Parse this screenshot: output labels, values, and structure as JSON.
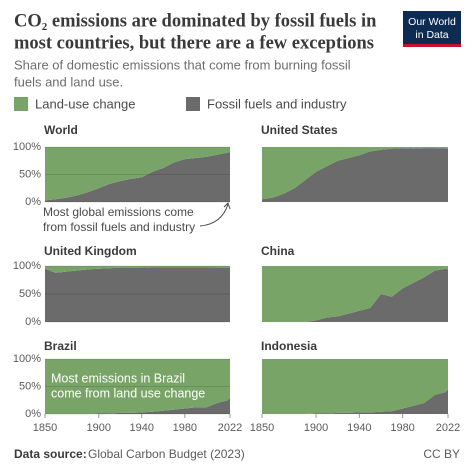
{
  "header": {
    "title": [
      "CO₂ emissions are dominated by fossil fuels in",
      "most countries, but there are a few exceptions"
    ],
    "subtitle": [
      "Share of domestic emissions that come from burning fossil",
      "fuels and land use."
    ],
    "logo": [
      "Our World",
      "in Data"
    ]
  },
  "footer": {
    "source_label": "Data source:",
    "source": "Global Carbon Budget (2023)",
    "license": "CC BY"
  },
  "chart_data": [
    {
      "type": "area",
      "title": "World",
      "stacked": true,
      "x": [
        1850,
        1860,
        1870,
        1880,
        1890,
        1900,
        1910,
        1920,
        1930,
        1940,
        1950,
        1960,
        1970,
        1980,
        1990,
        2000,
        2010,
        2020,
        2022
      ],
      "series": [
        {
          "name": "Fossil fuels and industry",
          "color": "#6b6b6b",
          "values": [
            3,
            5,
            8,
            12,
            18,
            25,
            33,
            38,
            42,
            45,
            55,
            62,
            72,
            78,
            80,
            82,
            86,
            90,
            91
          ]
        },
        {
          "name": "Land-use change",
          "color": "#78a468",
          "values": [
            97,
            95,
            92,
            88,
            82,
            75,
            67,
            62,
            58,
            55,
            45,
            38,
            28,
            22,
            20,
            18,
            14,
            10,
            9
          ]
        }
      ],
      "xlim": [
        1850,
        2022
      ],
      "ylim": [
        0,
        100
      ],
      "yticks": [
        {
          "value": 0,
          "label": "0%"
        },
        {
          "value": 50,
          "label": "50%"
        },
        {
          "value": 100,
          "label": "100%"
        }
      ],
      "grid": true,
      "annotation": [
        "Most global emissions come",
        "from fossil fuels and industry"
      ]
    },
    {
      "type": "area",
      "title": "United States",
      "stacked": true,
      "x": [
        1850,
        1860,
        1870,
        1880,
        1890,
        1900,
        1910,
        1920,
        1930,
        1940,
        1950,
        1960,
        1970,
        1980,
        1990,
        2000,
        2010,
        2020,
        2022
      ],
      "series": [
        {
          "name": "Fossil fuels and industry",
          "color": "#6b6b6b",
          "values": [
            5,
            8,
            15,
            25,
            40,
            55,
            65,
            75,
            80,
            85,
            92,
            95,
            97,
            98,
            97,
            98,
            98,
            97,
            97
          ]
        },
        {
          "name": "Land-use change",
          "color": "#78a468",
          "values": [
            95,
            92,
            85,
            75,
            60,
            45,
            35,
            25,
            20,
            15,
            8,
            5,
            3,
            2,
            3,
            2,
            2,
            3,
            3
          ]
        }
      ],
      "xlim": [
        1850,
        2022
      ],
      "ylim": [
        0,
        100
      ]
    },
    {
      "type": "area",
      "title": "United Kingdom",
      "stacked": true,
      "x": [
        1850,
        1860,
        1870,
        1880,
        1890,
        1900,
        1910,
        1920,
        1930,
        1940,
        1950,
        1960,
        1970,
        1980,
        1990,
        2000,
        2010,
        2020,
        2022
      ],
      "series": [
        {
          "name": "Fossil fuels and industry",
          "color": "#6b6b6b",
          "values": [
            95,
            88,
            90,
            92,
            94,
            95,
            96,
            97,
            97,
            97,
            98,
            98,
            98,
            98,
            98,
            98,
            97,
            97,
            97
          ]
        },
        {
          "name": "Land-use change",
          "color": "#78a468",
          "values": [
            5,
            12,
            10,
            8,
            6,
            5,
            4,
            3,
            3,
            3,
            2,
            2,
            2,
            2,
            2,
            2,
            3,
            3,
            3
          ]
        }
      ],
      "xlim": [
        1850,
        2022
      ],
      "ylim": [
        0,
        100
      ],
      "yticks": [
        {
          "value": 0,
          "label": "0%"
        },
        {
          "value": 50,
          "label": "50%"
        },
        {
          "value": 100,
          "label": "100%"
        }
      ],
      "grid": true
    },
    {
      "type": "area",
      "title": "China",
      "stacked": true,
      "x": [
        1850,
        1860,
        1870,
        1880,
        1890,
        1900,
        1910,
        1920,
        1930,
        1940,
        1950,
        1960,
        1970,
        1980,
        1990,
        2000,
        2010,
        2020,
        2022
      ],
      "series": [
        {
          "name": "Fossil fuels and industry",
          "color": "#6b6b6b",
          "values": [
            0,
            0,
            0,
            0,
            0,
            3,
            8,
            10,
            15,
            20,
            25,
            50,
            45,
            60,
            70,
            80,
            92,
            95,
            94
          ]
        },
        {
          "name": "Land-use change",
          "color": "#78a468",
          "values": [
            100,
            100,
            100,
            100,
            100,
            97,
            92,
            90,
            85,
            80,
            75,
            50,
            55,
            40,
            30,
            20,
            8,
            5,
            6
          ]
        }
      ],
      "xlim": [
        1850,
        2022
      ],
      "ylim": [
        0,
        100
      ]
    },
    {
      "type": "area",
      "title": "Brazil",
      "stacked": true,
      "x": [
        1850,
        1860,
        1870,
        1880,
        1890,
        1900,
        1910,
        1920,
        1930,
        1940,
        1950,
        1960,
        1970,
        1980,
        1990,
        2000,
        2010,
        2020,
        2022
      ],
      "series": [
        {
          "name": "Fossil fuels and industry",
          "color": "#6b6b6b",
          "values": [
            0,
            0,
            0,
            0,
            0,
            1,
            1,
            2,
            2,
            3,
            4,
            6,
            8,
            10,
            12,
            12,
            20,
            25,
            30
          ]
        },
        {
          "name": "Land-use change",
          "color": "#78a468",
          "values": [
            100,
            100,
            100,
            100,
            100,
            99,
            99,
            98,
            98,
            97,
            96,
            94,
            92,
            90,
            88,
            88,
            80,
            75,
            70
          ]
        }
      ],
      "xlim": [
        1850,
        2022
      ],
      "ylim": [
        0,
        100
      ],
      "yticks": [
        {
          "value": 0,
          "label": "0%"
        },
        {
          "value": 50,
          "label": "50%"
        },
        {
          "value": 100,
          "label": "100%"
        }
      ],
      "xticks": [
        1850,
        1900,
        1940,
        1980,
        2022
      ],
      "grid": true,
      "annotation": [
        "Most emissions in Brazil",
        "come from land use change"
      ]
    },
    {
      "type": "area",
      "title": "Indonesia",
      "stacked": true,
      "x": [
        1850,
        1860,
        1870,
        1880,
        1890,
        1900,
        1910,
        1920,
        1930,
        1940,
        1950,
        1960,
        1970,
        1980,
        1990,
        2000,
        2010,
        2020,
        2022
      ],
      "series": [
        {
          "name": "Fossil fuels and industry",
          "color": "#6b6b6b",
          "values": [
            0,
            0,
            0,
            0,
            0,
            1,
            1,
            2,
            2,
            3,
            3,
            4,
            5,
            10,
            15,
            20,
            35,
            40,
            45
          ]
        },
        {
          "name": "Land-use change",
          "color": "#78a468",
          "values": [
            100,
            100,
            100,
            100,
            100,
            99,
            99,
            98,
            98,
            97,
            97,
            96,
            95,
            90,
            85,
            80,
            65,
            60,
            55
          ]
        }
      ],
      "xlim": [
        1850,
        2022
      ],
      "ylim": [
        0,
        100
      ],
      "xticks": [
        1850,
        1900,
        1940,
        1980,
        2022
      ]
    }
  ]
}
